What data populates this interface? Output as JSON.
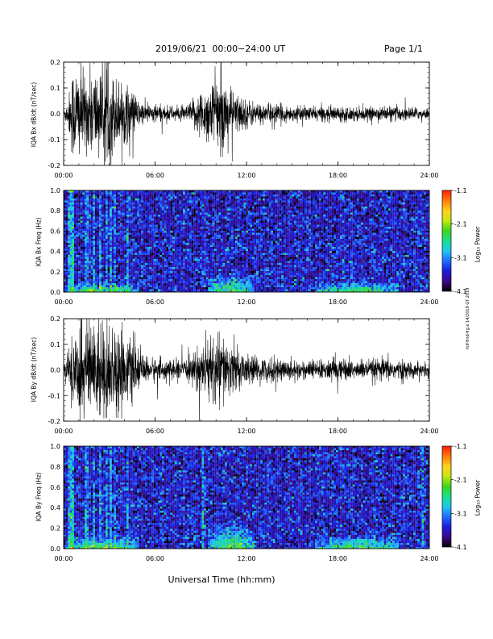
{
  "header": {
    "date_range": "2019/06/21  00:00−24:00 UT",
    "page": "Page 1/1"
  },
  "x_axis": {
    "label": "Universal Time (hh:mm)",
    "ticks": [
      "00:00",
      "06:00",
      "12:00",
      "18:00",
      "24:00"
    ]
  },
  "side_note": "mif-find-fig.e 14/2019 GT 2019",
  "colorbar": {
    "label": "Log₁₀ Power",
    "ticks": [
      "-1.1",
      "-2.1",
      "-3.1",
      "-4.1"
    ],
    "colors": [
      "#000000",
      "#3a0a8a",
      "#1b1bd9",
      "#1e6cff",
      "#1fc7f0",
      "#19e08a",
      "#3cd61d",
      "#c8e60f",
      "#ffd21a",
      "#ff7a0a",
      "#ff1a0a"
    ]
  },
  "chart_data": [
    {
      "type": "line",
      "ylabel": "IQA Bx dB/dt (nT/sec)",
      "yticks": [
        "0.2",
        "0.1",
        "0.0",
        "-0.1",
        "-0.2"
      ],
      "ylim": [
        -0.2,
        0.2
      ],
      "xlim": [
        0,
        24
      ],
      "x_unit": "hours UT",
      "envelope": {
        "x": [
          0,
          0.3,
          0.6,
          1.0,
          1.5,
          2.0,
          2.5,
          3.0,
          3.5,
          4.0,
          4.5,
          5.0,
          5.5,
          6.0,
          7.0,
          8.0,
          8.5,
          9.0,
          9.5,
          10.0,
          10.5,
          11.0,
          11.5,
          12.0,
          13.0,
          14.0,
          15.0,
          16.0,
          17.0,
          18.0,
          19.0,
          20.0,
          21.0,
          22.0,
          23.0,
          24.0
        ],
        "amplitude": [
          0.02,
          0.06,
          0.2,
          0.2,
          0.15,
          0.2,
          0.16,
          0.2,
          0.14,
          0.13,
          0.1,
          0.05,
          0.04,
          0.04,
          0.03,
          0.03,
          0.06,
          0.1,
          0.12,
          0.15,
          0.15,
          0.1,
          0.08,
          0.06,
          0.04,
          0.04,
          0.03,
          0.03,
          0.03,
          0.03,
          0.03,
          0.025,
          0.03,
          0.03,
          0.025,
          0.02
        ]
      }
    },
    {
      "type": "heatmap",
      "ylabel": "IQA Bx Freq (Hz)",
      "yticks": [
        "1.0",
        "0.8",
        "0.6",
        "0.4",
        "0.2",
        "0.0"
      ],
      "ylim": [
        0,
        1
      ],
      "xlim": [
        0,
        24
      ],
      "zlabel": "Log₁₀ Power",
      "zlim": [
        -4.1,
        -1.1
      ],
      "bright_bands_hours": [
        0.4,
        0.6,
        1.5,
        2.0,
        2.4,
        2.8,
        3.1,
        3.4,
        4.2
      ],
      "low_frequency_enhancement": [
        {
          "from": 0.2,
          "to": 5.0,
          "fmax": 0.1
        },
        {
          "from": 9.5,
          "to": 12.5,
          "fmax": 0.18
        },
        {
          "from": 16.5,
          "to": 22,
          "fmax": 0.12
        }
      ]
    },
    {
      "type": "line",
      "ylabel": "IQA By dB/dt (nT/sec)",
      "yticks": [
        "0.2",
        "0.1",
        "0.0",
        "-0.1",
        "-0.2"
      ],
      "ylim": [
        -0.2,
        0.2
      ],
      "xlim": [
        0,
        24
      ],
      "x_unit": "hours UT",
      "envelope": {
        "x": [
          0,
          0.3,
          0.6,
          1.0,
          1.5,
          2.0,
          2.5,
          3.0,
          3.5,
          4.0,
          4.5,
          5.0,
          5.5,
          6.0,
          7.0,
          8.0,
          8.5,
          9.0,
          9.5,
          10.0,
          10.5,
          11.0,
          11.5,
          12.0,
          13.0,
          14.0,
          15.0,
          16.0,
          17.0,
          18.0,
          19.0,
          20.0,
          21.0,
          22.0,
          23.0,
          24.0
        ],
        "amplitude": [
          0.03,
          0.06,
          0.2,
          0.2,
          0.2,
          0.2,
          0.2,
          0.2,
          0.18,
          0.14,
          0.12,
          0.07,
          0.05,
          0.05,
          0.04,
          0.04,
          0.06,
          0.1,
          0.13,
          0.15,
          0.14,
          0.1,
          0.08,
          0.06,
          0.05,
          0.05,
          0.04,
          0.04,
          0.04,
          0.05,
          0.04,
          0.04,
          0.05,
          0.04,
          0.03,
          0.03
        ]
      }
    },
    {
      "type": "heatmap",
      "ylabel": "IQA By Freq (Hz)",
      "yticks": [
        "1.0",
        "0.8",
        "0.6",
        "0.4",
        "0.2",
        "0.0"
      ],
      "ylim": [
        0,
        1
      ],
      "xlim": [
        0,
        24
      ],
      "zlabel": "Log₁₀ Power",
      "zlim": [
        -4.1,
        -1.1
      ],
      "bright_bands_hours": [
        0.4,
        0.6,
        1.5,
        2.0,
        2.4,
        2.8,
        3.1,
        3.4,
        4.2,
        9.1,
        23.5
      ],
      "low_frequency_enhancement": [
        {
          "from": 0.2,
          "to": 5.0,
          "fmax": 0.12
        },
        {
          "from": 9.5,
          "to": 12.5,
          "fmax": 0.25
        },
        {
          "from": 16.5,
          "to": 22,
          "fmax": 0.13
        }
      ]
    }
  ]
}
